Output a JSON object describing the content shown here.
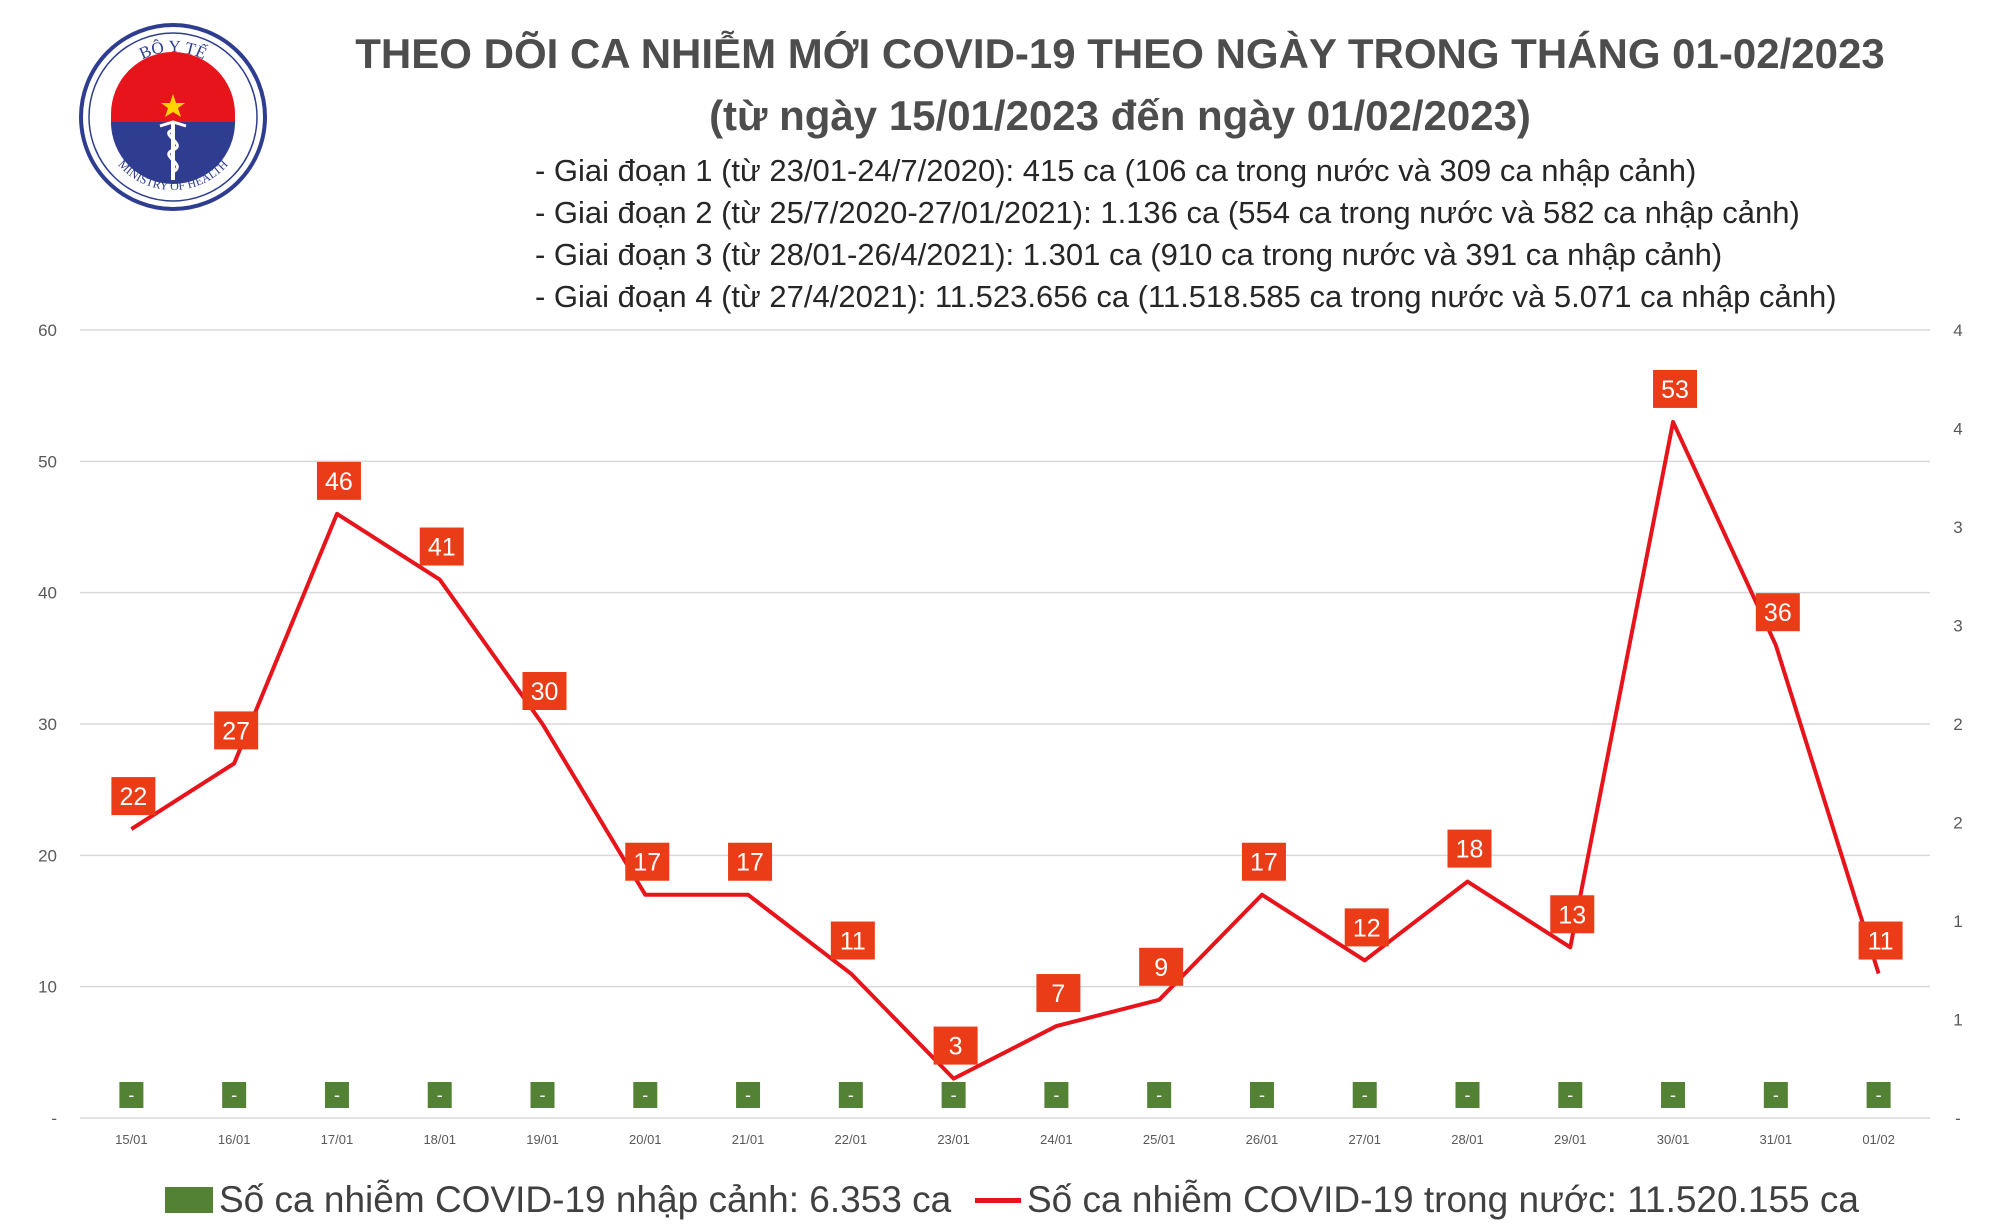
{
  "logo": {
    "top_text": "BỘ Y TẾ",
    "bottom_text": "MINISTRY OF HEALTH"
  },
  "title": {
    "line1": "THEO DÕI CA NHIỄM MỚI COVID-19 THEO NGÀY TRONG THÁNG 01-02/2023",
    "line2": "(từ ngày 15/01/2023 đến ngày 01/02/2023)"
  },
  "phases": [
    "- Giai đoạn 1 (từ 23/01-24/7/2020): 415 ca (106 ca trong nước và 309 ca nhập cảnh)",
    "- Giai đoạn 2 (từ 25/7/2020-27/01/2021): 1.136 ca (554 ca trong nước và 582 ca nhập cảnh)",
    "- Giai đoạn 3 (từ 28/01-26/4/2021): 1.301 ca (910 ca trong nước và 391 ca nhập cảnh)",
    "- Giai đoạn 4 (từ 27/4/2021): 11.523.656 ca (11.518.585 ca trong nước và 5.071 ca nhập cảnh)"
  ],
  "legend": {
    "imported": "Số ca nhiễm COVID-19 nhập cảnh: 6.353 ca",
    "domestic": "Số ca nhiễm COVID-19 trong nước: 11.520.155 ca"
  },
  "colors": {
    "line": "#e8141b",
    "label_bg": "#ea3c16",
    "bar": "#548235",
    "grid": "#d9d9d9"
  },
  "chart_data": {
    "type": "line",
    "categories": [
      "15/01",
      "16/01",
      "17/01",
      "18/01",
      "19/01",
      "20/01",
      "21/01",
      "22/01",
      "23/01",
      "24/01",
      "25/01",
      "26/01",
      "27/01",
      "28/01",
      "29/01",
      "30/01",
      "31/01",
      "01/02"
    ],
    "series": [
      {
        "name": "Số ca nhiễm COVID-19 trong nước",
        "type": "line",
        "axis": "left",
        "values": [
          22,
          27,
          46,
          41,
          30,
          17,
          17,
          11,
          3,
          7,
          9,
          17,
          12,
          18,
          13,
          53,
          36,
          11
        ]
      },
      {
        "name": "Số ca nhiễm COVID-19 nhập cảnh",
        "type": "bar",
        "axis": "right",
        "values": [
          0,
          0,
          0,
          0,
          0,
          0,
          0,
          0,
          0,
          0,
          0,
          0,
          0,
          0,
          0,
          0,
          0,
          0
        ],
        "data_labels": [
          "-",
          "-",
          "-",
          "-",
          "-",
          "-",
          "-",
          "-",
          "-",
          "-",
          "-",
          "-",
          "-",
          "-",
          "-",
          "-",
          "-",
          "-"
        ]
      }
    ],
    "left_axis": {
      "ylim": [
        0,
        60
      ],
      "ticks": [
        "-",
        "10",
        "20",
        "30",
        "40",
        "50",
        "60"
      ]
    },
    "right_axis": {
      "ylim": [
        0,
        4
      ],
      "ticks": [
        "-",
        "1",
        "1",
        "2",
        "2",
        "3",
        "3",
        "4",
        "4"
      ]
    },
    "grid": true,
    "legend_position": "bottom"
  }
}
